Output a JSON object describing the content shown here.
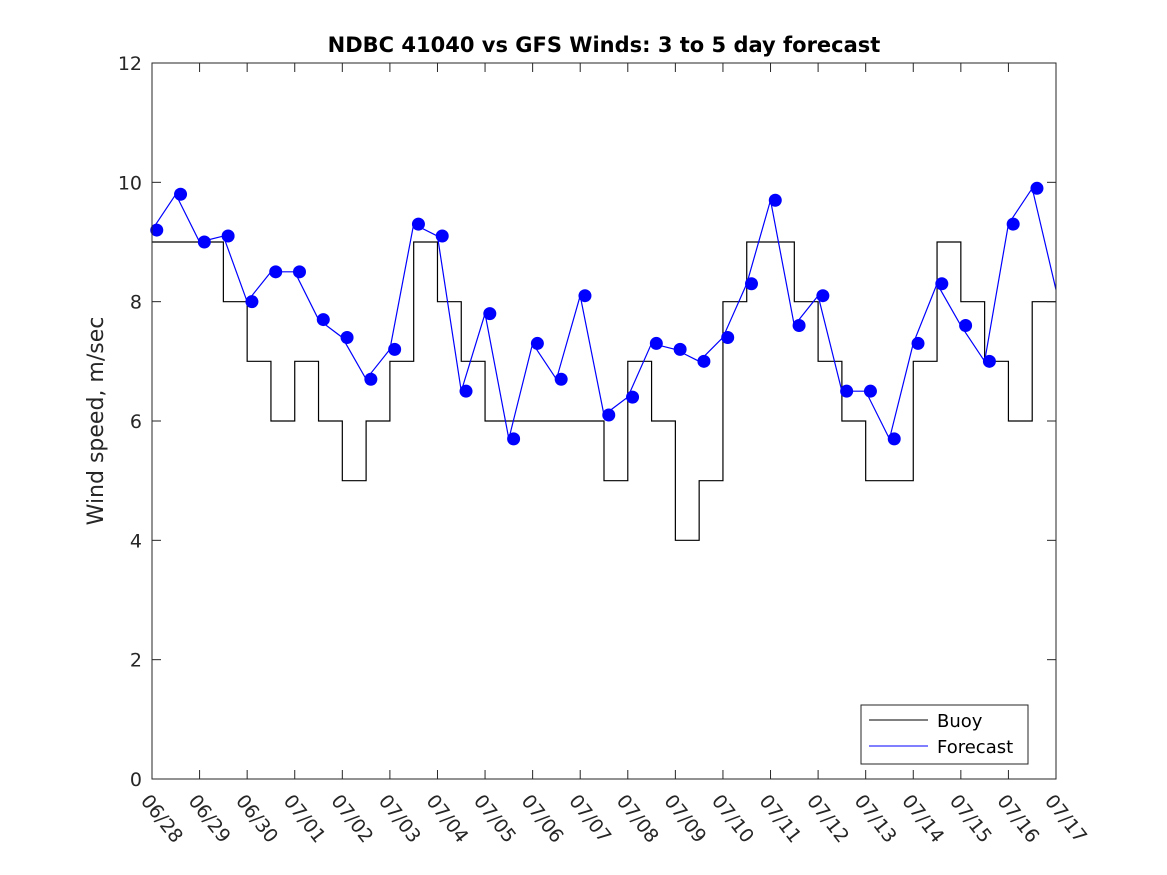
{
  "chart_data": {
    "type": "line",
    "title": "NDBC 41040 vs GFS Winds: 3 to 5 day forecast",
    "xlabel": "",
    "ylabel": "Wind speed, m/sec",
    "ylim": [
      0,
      12
    ],
    "yticks": [
      "0",
      "2",
      "4",
      "6",
      "8",
      "10",
      "12"
    ],
    "xlim": [
      0,
      19
    ],
    "xticks": [
      "06/28",
      "06/29",
      "06/30",
      "07/01",
      "07/02",
      "07/03",
      "07/04",
      "07/05",
      "07/06",
      "07/07",
      "07/08",
      "07/09",
      "07/10",
      "07/11",
      "07/12",
      "07/13",
      "07/14",
      "07/15",
      "07/16",
      "07/17"
    ],
    "grid": false,
    "legend": {
      "position": "bottom-right",
      "entries": [
        {
          "label": "Buoy",
          "color": "#000000"
        },
        {
          "label": "Forecast",
          "color": "#0000ff"
        }
      ]
    },
    "series": [
      {
        "name": "Buoy",
        "style": "step-line",
        "color": "#000000",
        "x": [
          0.0,
          0.5,
          1.0,
          1.5,
          2.0,
          2.5,
          3.0,
          3.5,
          4.0,
          4.5,
          5.0,
          5.5,
          6.0,
          6.5,
          7.0,
          7.5,
          8.0,
          8.5,
          9.0,
          9.5,
          10.0,
          10.5,
          11.0,
          11.5,
          12.0,
          12.5,
          13.0,
          13.5,
          14.0,
          14.5,
          15.0,
          15.5,
          16.0,
          16.5,
          17.0,
          17.5,
          18.0,
          18.5,
          19.0
        ],
        "y": [
          9,
          9,
          9,
          8,
          7,
          6,
          7,
          6,
          5,
          6,
          7,
          9,
          8,
          7,
          6,
          6,
          6,
          6,
          6,
          5,
          7,
          6,
          4,
          5,
          8,
          9,
          9,
          8,
          7,
          6,
          5,
          5,
          7,
          9,
          8,
          7,
          6,
          8,
          8
        ]
      },
      {
        "name": "Forecast",
        "style": "line",
        "color": "#0000ff",
        "x": [
          0.0,
          0.5,
          1.0,
          1.5,
          2.0,
          2.5,
          3.0,
          3.5,
          4.0,
          4.5,
          5.0,
          5.5,
          6.0,
          6.5,
          7.0,
          7.5,
          8.0,
          8.5,
          9.0,
          9.5,
          10.0,
          10.5,
          11.0,
          11.5,
          12.0,
          12.5,
          13.0,
          13.5,
          14.0,
          14.5,
          15.0,
          15.5,
          16.0,
          16.5,
          17.0,
          17.5,
          18.0,
          18.5,
          19.0
        ],
        "y": [
          9.2,
          9.8,
          9.0,
          9.1,
          8.0,
          8.5,
          8.5,
          7.7,
          7.4,
          6.7,
          7.2,
          9.3,
          9.1,
          6.5,
          7.8,
          5.7,
          7.3,
          6.7,
          8.1,
          6.1,
          6.4,
          7.3,
          7.2,
          7.0,
          7.4,
          8.3,
          9.7,
          7.6,
          8.1,
          6.5,
          6.5,
          5.7,
          7.3,
          8.3,
          7.6,
          7.0,
          9.3,
          9.9,
          8.2
        ]
      }
    ],
    "markers": {
      "name": "Forecast",
      "color": "#0000ff",
      "x": [
        0.1,
        0.6,
        1.1,
        1.6,
        2.1,
        2.6,
        3.1,
        3.6,
        4.1,
        4.6,
        5.1,
        5.6,
        6.1,
        6.6,
        7.1,
        7.6,
        8.1,
        8.6,
        9.1,
        9.6,
        10.1,
        10.6,
        11.1,
        11.6,
        12.1,
        12.6,
        13.1,
        13.6,
        14.1,
        14.6,
        15.1,
        15.6,
        16.1,
        16.6,
        17.1,
        17.6,
        18.1,
        18.6
      ],
      "y": [
        9.2,
        9.8,
        9.0,
        9.1,
        8.0,
        8.5,
        8.5,
        7.7,
        7.4,
        6.7,
        7.2,
        9.3,
        9.1,
        6.5,
        7.8,
        5.7,
        7.3,
        6.7,
        8.1,
        6.1,
        6.4,
        7.3,
        7.2,
        7.0,
        7.4,
        8.3,
        9.7,
        7.6,
        8.1,
        6.5,
        6.5,
        5.7,
        7.3,
        8.3,
        7.6,
        7.0,
        9.3,
        9.9
      ]
    }
  }
}
